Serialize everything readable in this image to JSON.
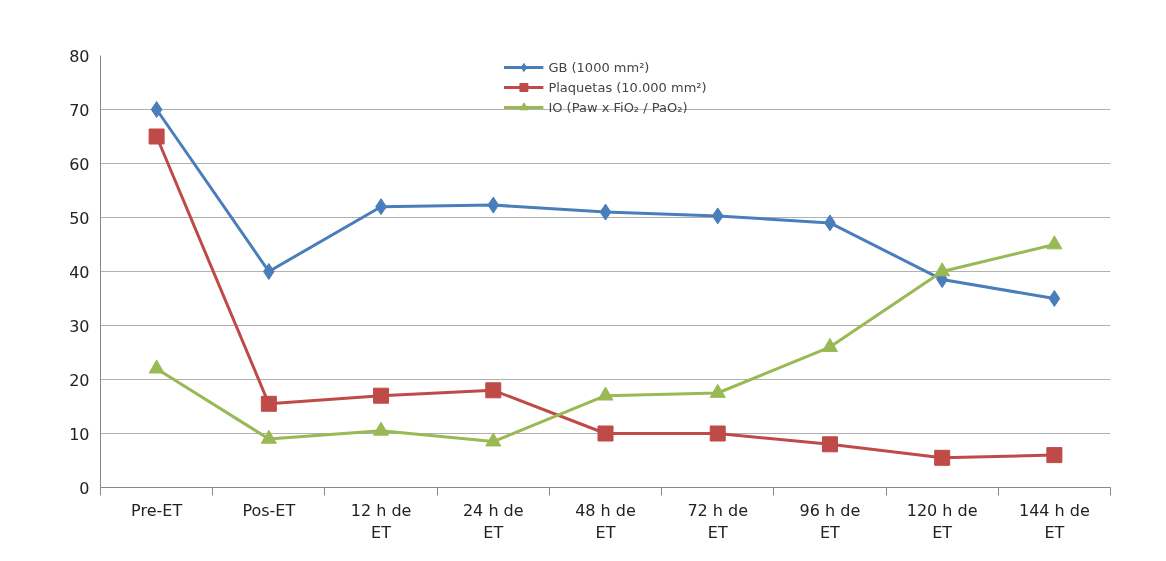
{
  "chart_data": {
    "type": "line",
    "categories": [
      "Pre-ET",
      "Pos-ET",
      "12 h de ET",
      "24 h de ET",
      "48 h de ET",
      "72 h de ET",
      "96 h de ET",
      "120 h de ET",
      "144 h de ET"
    ],
    "series": [
      {
        "name": "GB (1000 mm²)",
        "color": "#4a7ebb",
        "marker": "diamond",
        "values": [
          70,
          40,
          52,
          52.3,
          51,
          50.3,
          49,
          38.5,
          35
        ]
      },
      {
        "name": "Plaquetas (10.000 mm²)",
        "color": "#be4b48",
        "marker": "square",
        "values": [
          65,
          15.5,
          17,
          18,
          10,
          10,
          8,
          5.5,
          6
        ]
      },
      {
        "name": "IO (Paw x FiO₂ / PaO₂)",
        "color": "#98b954",
        "marker": "triangle",
        "values": [
          22,
          9,
          10.5,
          8.5,
          17,
          17.5,
          26,
          40,
          45
        ]
      }
    ],
    "ylim": [
      0,
      80
    ],
    "yticks": [
      0,
      10,
      20,
      30,
      40,
      50,
      60,
      70,
      80
    ],
    "grid": "y",
    "legend": "top"
  }
}
